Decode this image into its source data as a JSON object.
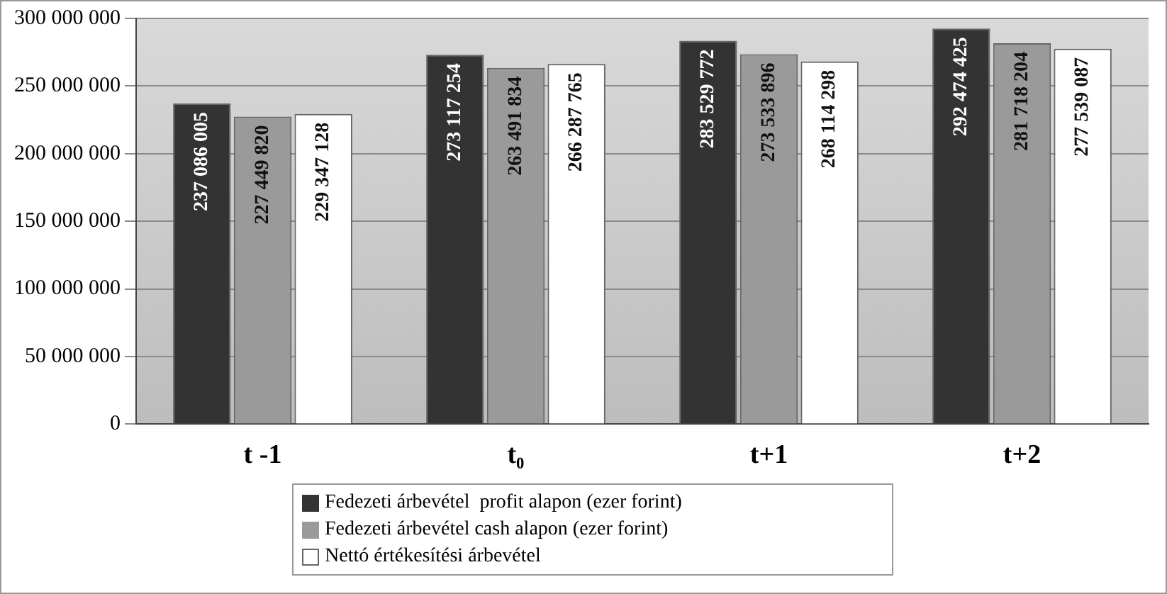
{
  "chart_data": {
    "type": "bar",
    "categories": [
      "t -1",
      "t₀",
      "t+1",
      "t+2"
    ],
    "series": [
      {
        "name": "Fedezeti árbevétel  profit alapon (ezer forint)",
        "color": "#333333",
        "values": [
          237086005,
          273117254,
          283529772,
          292474425
        ],
        "value_labels": [
          "237 086 005",
          "273 117 254",
          "283 529 772",
          "292 474 425"
        ]
      },
      {
        "name": "Fedezeti árbevétel cash alapon (ezer forint)",
        "color": "#9a9a9a",
        "values": [
          227449820,
          263491834,
          273533896,
          281718204
        ],
        "value_labels": [
          "227 449 820",
          "263 491 834",
          "273 533 896",
          "281 718 204"
        ]
      },
      {
        "name": "Nettó értékesítési árbevétel",
        "color": "#ffffff",
        "values": [
          229347128,
          266287765,
          268114298,
          277539087
        ],
        "value_labels": [
          "229 347 128",
          "266 287 765",
          "268 114 298",
          "277 539 087"
        ]
      }
    ],
    "ylim": [
      0,
      300000000
    ],
    "yticks": [
      {
        "value": 0,
        "label": "0"
      },
      {
        "value": 50000000,
        "label": "50 000 000"
      },
      {
        "value": 100000000,
        "label": "100 000 000"
      },
      {
        "value": 150000000,
        "label": "150 000 000"
      },
      {
        "value": 200000000,
        "label": "200 000 000"
      },
      {
        "value": 250000000,
        "label": "250 000 000"
      },
      {
        "value": 300000000,
        "label": "300 000 000"
      }
    ],
    "grid": "y",
    "legend": "bottom"
  }
}
